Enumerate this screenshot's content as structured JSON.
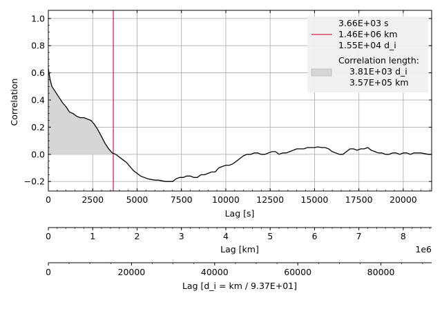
{
  "chart_data": {
    "type": "line",
    "ylabel": "Correlation",
    "xlim": [
      0,
      21600
    ],
    "ylim": [
      -0.27,
      1.06
    ],
    "yticks": [
      -0.2,
      0.0,
      0.2,
      0.4,
      0.6,
      0.8,
      1.0
    ],
    "ytick_labels": [
      "−0.2",
      "0.0",
      "0.2",
      "0.4",
      "0.6",
      "0.8",
      "1.0"
    ],
    "grid": true,
    "legend_position": "top-right",
    "series": [
      {
        "x": [
          0,
          100,
          200,
          400,
          600,
          800,
          1000,
          1200,
          1400,
          1600,
          1800,
          2000,
          2200,
          2400,
          2600,
          2800,
          3000,
          3200,
          3400,
          3600,
          3800,
          4000,
          4200,
          4400,
          4600,
          4800,
          5000,
          5200,
          5400,
          5600,
          5800,
          6000,
          6200,
          6400,
          6600,
          6800,
          7000,
          7200,
          7400,
          7600,
          7800,
          8000,
          8200,
          8400,
          8600,
          8800,
          9000,
          9200,
          9400,
          9600,
          9800,
          10000,
          10200,
          10400,
          10600,
          10800,
          11000,
          11200,
          11400,
          11600,
          11800,
          12000,
          12200,
          12400,
          12600,
          12800,
          13000,
          13200,
          13400,
          13600,
          13800,
          14000,
          14200,
          14400,
          14600,
          14800,
          15000,
          15200,
          15400,
          15600,
          15800,
          16000,
          16200,
          16400,
          16600,
          16800,
          17000,
          17200,
          17400,
          17600,
          17800,
          18000,
          18200,
          18400,
          18600,
          18800,
          19000,
          19200,
          19400,
          19600,
          19800,
          20000,
          20200,
          20400,
          20600,
          20800,
          21000,
          21200,
          21400,
          21600
        ],
        "y": [
          0.63,
          0.55,
          0.5,
          0.46,
          0.42,
          0.38,
          0.35,
          0.31,
          0.3,
          0.28,
          0.27,
          0.27,
          0.26,
          0.25,
          0.22,
          0.18,
          0.13,
          0.08,
          0.04,
          0.01,
          0.0,
          -0.02,
          -0.04,
          -0.06,
          -0.09,
          -0.12,
          -0.14,
          -0.16,
          -0.17,
          -0.18,
          -0.185,
          -0.19,
          -0.19,
          -0.195,
          -0.2,
          -0.2,
          -0.2,
          -0.18,
          -0.17,
          -0.17,
          -0.16,
          -0.16,
          -0.17,
          -0.17,
          -0.15,
          -0.15,
          -0.14,
          -0.13,
          -0.13,
          -0.1,
          -0.09,
          -0.08,
          -0.08,
          -0.07,
          -0.05,
          -0.03,
          -0.01,
          0.0,
          0.0,
          0.01,
          0.01,
          0.0,
          0.0,
          0.01,
          0.02,
          0.02,
          0.0,
          0.01,
          0.01,
          0.02,
          0.03,
          0.04,
          0.04,
          0.04,
          0.05,
          0.05,
          0.05,
          0.055,
          0.05,
          0.05,
          0.04,
          0.02,
          0.01,
          0.0,
          0.0,
          0.02,
          0.04,
          0.04,
          0.03,
          0.04,
          0.04,
          0.05,
          0.03,
          0.02,
          0.01,
          0.01,
          0.0,
          0.0,
          0.01,
          0.01,
          0.0,
          0.01,
          0.01,
          0.0,
          0.01,
          0.01,
          0.01,
          0.005,
          0.0,
          0.0
        ]
      }
    ],
    "shade_until_x": 3810,
    "marker_x": 3660,
    "axis_s": {
      "label": "Lag [s]",
      "range": [
        0,
        21600
      ],
      "ticks": [
        0,
        2500,
        5000,
        7500,
        10000,
        12500,
        15000,
        17500,
        20000
      ],
      "tick_labels": [
        "0",
        "2500",
        "5000",
        "7500",
        "10000",
        "12500",
        "15000",
        "17500",
        "20000"
      ]
    },
    "axis_km": {
      "label": "Lag [km]",
      "offset_text": "1e6",
      "range": [
        0,
        8.64
      ],
      "ticks": [
        0,
        1,
        2,
        3,
        4,
        5,
        6,
        7,
        8
      ],
      "tick_labels": [
        "0",
        "1",
        "2",
        "3",
        "4",
        "5",
        "6",
        "7",
        "8"
      ]
    },
    "axis_di": {
      "label": "Lag [d_i = km / 9.37E+01]",
      "range": [
        0,
        92200
      ],
      "ticks": [
        0,
        20000,
        40000,
        60000,
        80000
      ],
      "tick_labels": [
        "0",
        "20000",
        "40000",
        "60000",
        "80000"
      ]
    },
    "legend": {
      "line_entry": [
        "3.66E+03 s",
        "1.46E+06 km",
        "1.55E+04 d_i"
      ],
      "patch_title": "Correlation length:",
      "patch_entry": [
        "3.81E+03 d_i",
        "3.57E+05 km"
      ]
    },
    "colors": {
      "line": "#000000",
      "marker": "#d6254d",
      "shade": "#d6d6d6",
      "grid": "#b0b0b0",
      "legend_bg": "#f0f0f0"
    }
  }
}
